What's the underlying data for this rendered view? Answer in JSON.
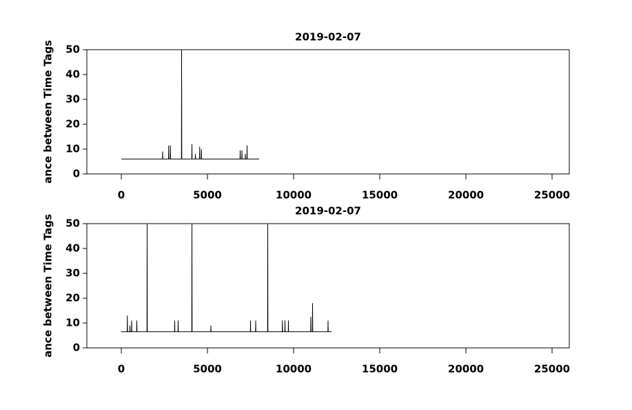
{
  "chart_data": [
    {
      "type": "line",
      "title": "2019-02-07",
      "ylabel": "ance between Time Tags",
      "color": "#000000",
      "xlim": [
        -2000,
        26000
      ],
      "xticks": [
        0,
        5000,
        10000,
        15000,
        20000,
        25000
      ],
      "ylim": [
        0,
        50
      ],
      "yticks": [
        0,
        10,
        20,
        30,
        40,
        50
      ],
      "grid": false,
      "x": [
        0,
        2390,
        2400,
        2410,
        2740,
        2750,
        2760,
        2840,
        2850,
        2860,
        3490,
        3500,
        3510,
        4090,
        4100,
        4110,
        4290,
        4300,
        4310,
        4540,
        4550,
        4560,
        4640,
        4650,
        4660,
        6890,
        6900,
        6910,
        6990,
        7000,
        7010,
        7190,
        7200,
        7210,
        7290,
        7300,
        7310,
        8000
      ],
      "values": [
        6,
        6,
        9,
        6,
        6,
        11.5,
        6,
        6,
        11.5,
        6,
        6,
        50,
        6,
        6,
        12,
        6,
        6,
        8,
        6,
        6,
        11,
        6,
        6,
        10,
        6,
        6,
        9.5,
        6,
        6,
        9.5,
        6,
        6,
        8,
        6,
        6,
        11.5,
        6,
        6
      ]
    },
    {
      "type": "line",
      "title": "2019-02-07",
      "ylabel": "ance between Time Tags",
      "color": "#000000",
      "xlim": [
        -2000,
        26000
      ],
      "xticks": [
        0,
        5000,
        10000,
        15000,
        20000,
        25000
      ],
      "ylim": [
        0,
        50
      ],
      "yticks": [
        0,
        10,
        20,
        30,
        40,
        50
      ],
      "grid": false,
      "x": [
        0,
        340,
        350,
        360,
        490,
        500,
        510,
        590,
        600,
        610,
        890,
        900,
        910,
        1490,
        1500,
        1510,
        3090,
        3100,
        3110,
        3290,
        3300,
        3310,
        4090,
        4100,
        4110,
        5190,
        5200,
        5210,
        7490,
        7500,
        7510,
        7790,
        7800,
        7810,
        8490,
        8500,
        8510,
        9340,
        9350,
        9360,
        9490,
        9500,
        9510,
        9690,
        9700,
        9710,
        10990,
        11000,
        11010,
        11090,
        11100,
        11110,
        11990,
        12000,
        12010,
        12200
      ],
      "values": [
        6.5,
        6.5,
        13,
        6.5,
        6.5,
        9,
        6.5,
        6.5,
        11,
        6.5,
        6.5,
        11,
        6.5,
        6.5,
        50,
        6.5,
        6.5,
        11,
        6.5,
        6.5,
        11,
        6.5,
        6.5,
        50,
        6.5,
        6.5,
        9,
        6.5,
        6.5,
        11,
        6.5,
        6.5,
        11,
        6.5,
        6.5,
        50,
        6.5,
        6.5,
        11,
        6.5,
        6.5,
        11,
        6.5,
        6.5,
        11,
        6.5,
        6.5,
        12.5,
        6.5,
        6.5,
        18,
        6.5,
        6.5,
        11,
        6.5,
        6.5
      ]
    }
  ]
}
